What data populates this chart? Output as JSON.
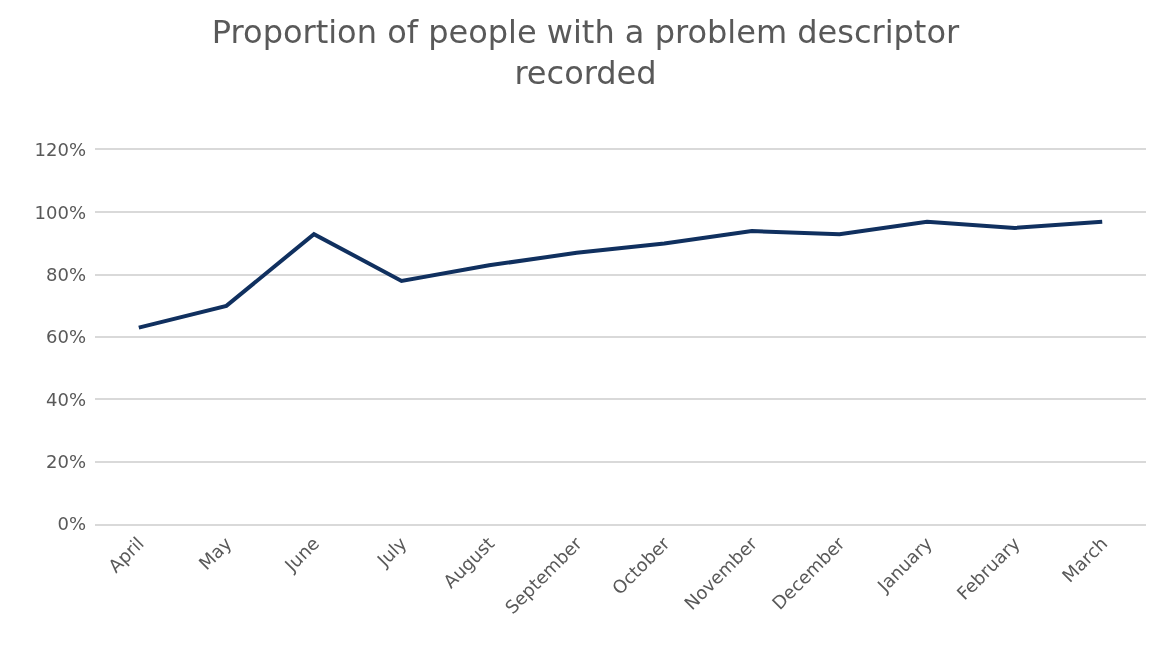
{
  "chart_data": {
    "type": "line",
    "title": "Proportion of people with a problem descriptor recorded",
    "categories": [
      "April",
      "May",
      "June",
      "July",
      "August",
      "September",
      "October",
      "November",
      "December",
      "January",
      "February",
      "March"
    ],
    "series": [
      {
        "color": "#10305f",
        "values": [
          63,
          70,
          93,
          78,
          83,
          87,
          90,
          94,
          93,
          97,
          95,
          97
        ]
      }
    ],
    "ylim": [
      0,
      120
    ],
    "yticks": [
      {
        "value": 0,
        "label": "0%"
      },
      {
        "value": 20,
        "label": "20%"
      },
      {
        "value": 40,
        "label": "40%"
      },
      {
        "value": 60,
        "label": "60%"
      },
      {
        "value": 80,
        "label": "80%"
      },
      {
        "value": 100,
        "label": "100%"
      },
      {
        "value": 120,
        "label": "120%"
      }
    ],
    "grid": "y",
    "marker": "none",
    "line_style": "solid"
  }
}
